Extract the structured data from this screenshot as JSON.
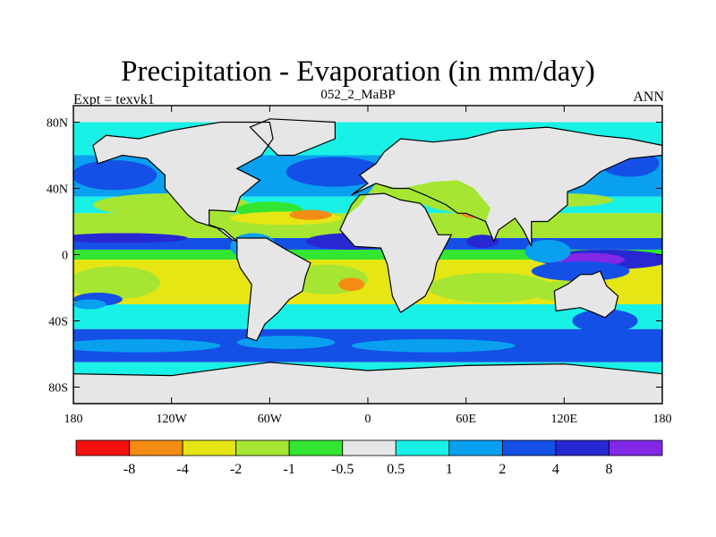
{
  "chart_data": {
    "type": "heatmap",
    "title": "Precipitation - Evaporation (in mm/day)",
    "subtitle": "052_2_MaBP",
    "left_label": "Expt = texvk1",
    "right_label": "ANN",
    "x_ticks": [
      "180",
      "120W",
      "60W",
      "0",
      "60E",
      "120E",
      "180"
    ],
    "x_tick_values": [
      -180,
      -120,
      -60,
      0,
      60,
      120,
      180
    ],
    "y_ticks": [
      "80N",
      "40N",
      "0",
      "40S",
      "80S"
    ],
    "y_tick_values": [
      80,
      40,
      0,
      -40,
      -80
    ],
    "xlim": [
      -180,
      180
    ],
    "ylim": [
      -90,
      90
    ],
    "levels": [
      "-8",
      "-4",
      "-2",
      "-1",
      "-0.5",
      "0.5",
      "1",
      "2",
      "4",
      "8"
    ],
    "colorbar_colors": [
      "#f50f0f",
      "#f58c14",
      "#e6e614",
      "#a6e632",
      "#32e632",
      "#e6e6e6",
      "#19f0e6",
      "#0aa0f0",
      "#1450e6",
      "#2828d2",
      "#8228e6"
    ],
    "regions": [
      {
        "band": [
          80,
          90
        ],
        "cls": 5
      },
      {
        "band": [
          60,
          80
        ],
        "cls": 6
      },
      {
        "band": [
          35,
          60
        ],
        "cls": 7
      },
      {
        "band": [
          25,
          35
        ],
        "cls": 6
      },
      {
        "band": [
          10,
          25
        ],
        "cls": 3
      },
      {
        "band": [
          3,
          10
        ],
        "cls": 8
      },
      {
        "band": [
          -3,
          3
        ],
        "cls": 4
      },
      {
        "band": [
          -30,
          -3
        ],
        "cls": 2
      },
      {
        "band": [
          -45,
          -30
        ],
        "cls": 6
      },
      {
        "band": [
          -65,
          -45
        ],
        "cls": 8
      },
      {
        "band": [
          -85,
          -65
        ],
        "cls": 6
      },
      {
        "band": [
          -90,
          -85
        ],
        "cls": 5
      }
    ]
  }
}
